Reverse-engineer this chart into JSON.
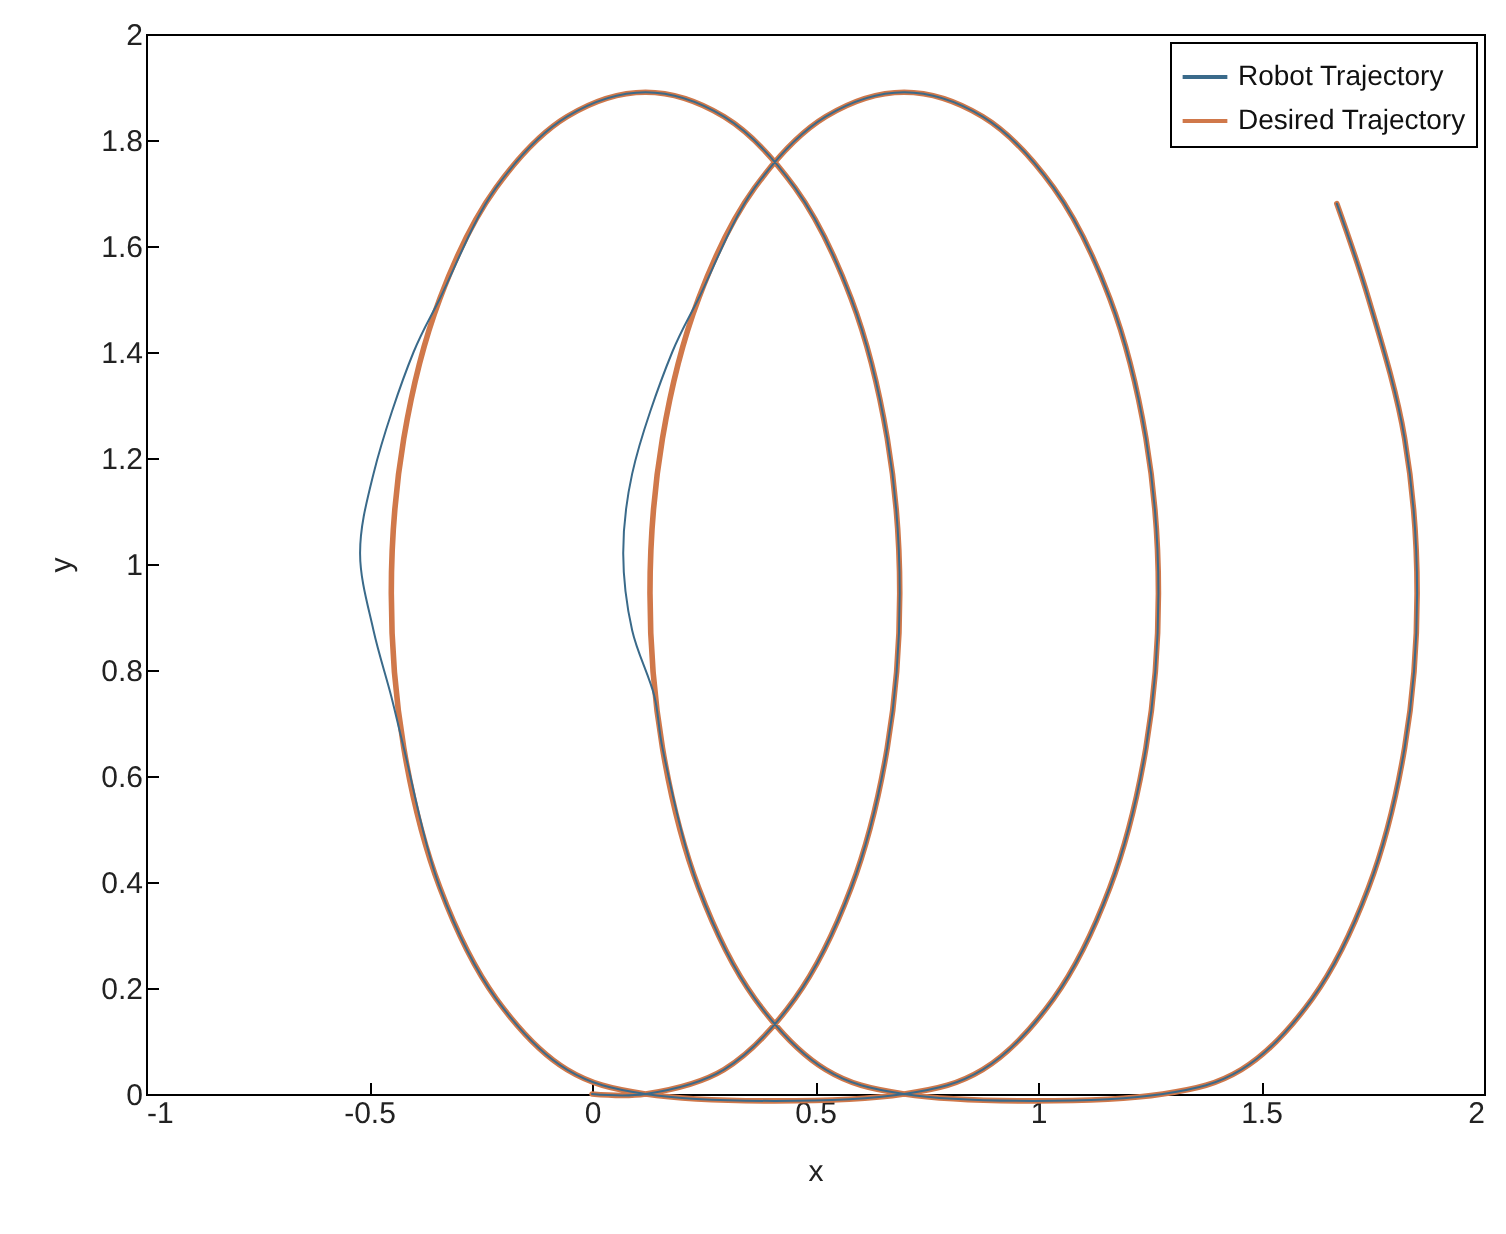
{
  "chart_data": {
    "type": "line",
    "xlabel": "x",
    "ylabel": "y",
    "xlim": [
      -1,
      2
    ],
    "ylim": [
      0,
      2
    ],
    "xticks": [
      -1,
      -0.5,
      0,
      0.5,
      1,
      1.5,
      2
    ],
    "yticks": [
      0,
      0.2,
      0.4,
      0.6,
      0.8,
      1,
      1.2,
      1.4,
      1.6,
      1.8,
      2
    ],
    "legend": "top right",
    "series": [
      {
        "name": "Robot Trajectory",
        "color": "#3a6a8a",
        "x": [
          0,
          0.12,
          0.296,
          0.455,
          0.581,
          0.662,
          0.69,
          0.662,
          0.581,
          0.455,
          0.296,
          0.12,
          -0.056,
          -0.215,
          -0.341,
          -0.4,
          -0.49,
          -0.52,
          -0.49,
          -0.45,
          -0.422,
          -0.341,
          -0.215,
          -0.056,
          0.12,
          0.7,
          0.876,
          1.035,
          1.161,
          1.242,
          1.27,
          1.242,
          1.161,
          1.035,
          0.876,
          0.7,
          0.524,
          0.365,
          0.239,
          0.18,
          0.09,
          0.07,
          0.09,
          0.14,
          0.158,
          0.239,
          0.365,
          0.524,
          0.7,
          1.28,
          1.456,
          1.615,
          1.741,
          1.822,
          1.85,
          1.822,
          1.741,
          1.67
        ],
        "values": [
          0,
          0,
          0.046,
          0.18,
          0.389,
          0.653,
          0.945,
          1.237,
          1.501,
          1.71,
          1.844,
          1.89,
          1.844,
          1.71,
          1.501,
          1.4,
          1.17,
          1.02,
          0.875,
          0.75,
          0.653,
          0.389,
          0.18,
          0.046,
          0,
          0,
          0.046,
          0.18,
          0.389,
          0.653,
          0.945,
          1.237,
          1.501,
          1.71,
          1.844,
          1.89,
          1.844,
          1.71,
          1.501,
          1.4,
          1.17,
          1.02,
          0.875,
          0.75,
          0.653,
          0.389,
          0.18,
          0.046,
          0,
          0,
          0.046,
          0.18,
          0.389,
          0.653,
          0.945,
          1.237,
          1.501,
          1.68
        ]
      },
      {
        "name": "Desired Trajectory",
        "color": "#d0784a",
        "x": [
          0,
          0.12,
          0.296,
          0.455,
          0.581,
          0.662,
          0.69,
          0.662,
          0.581,
          0.455,
          0.296,
          0.12,
          -0.056,
          -0.215,
          -0.341,
          -0.422,
          -0.45,
          -0.422,
          -0.341,
          -0.215,
          -0.056,
          0.12,
          0.7,
          0.876,
          1.035,
          1.161,
          1.242,
          1.27,
          1.242,
          1.161,
          1.035,
          0.876,
          0.7,
          0.524,
          0.365,
          0.239,
          0.158,
          0.13,
          0.158,
          0.239,
          0.365,
          0.524,
          0.7,
          1.28,
          1.456,
          1.615,
          1.741,
          1.822,
          1.85,
          1.822,
          1.741,
          1.67
        ],
        "values": [
          0,
          0,
          0.046,
          0.18,
          0.389,
          0.653,
          0.945,
          1.237,
          1.501,
          1.71,
          1.844,
          1.89,
          1.844,
          1.71,
          1.501,
          1.237,
          0.945,
          0.653,
          0.389,
          0.18,
          0.046,
          0,
          0,
          0.046,
          0.18,
          0.389,
          0.653,
          0.945,
          1.237,
          1.501,
          1.71,
          1.844,
          1.89,
          1.844,
          1.71,
          1.501,
          1.237,
          0.945,
          0.653,
          0.389,
          0.18,
          0.046,
          0,
          0,
          0.046,
          0.18,
          0.389,
          0.653,
          0.945,
          1.237,
          1.501,
          1.68
        ]
      }
    ]
  }
}
